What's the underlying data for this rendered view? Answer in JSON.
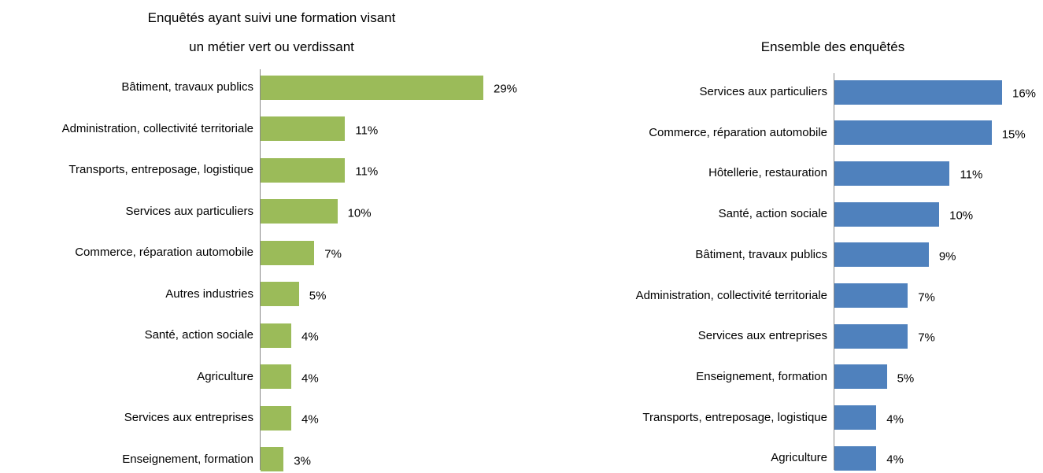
{
  "chart_data": [
    {
      "type": "bar",
      "title": "Enquêtés ayant suivi une formation visant un métier vert ou verdissant",
      "categories": [
        "Bâtiment, travaux publics",
        "Administration, collectivité territoriale",
        "Transports, entreposage, logistique",
        "Services aux particuliers",
        "Commerce, réparation automobile",
        "Autres industries",
        "Santé, action sociale",
        "Agriculture",
        "Services aux entreprises",
        "Enseignement, formation"
      ],
      "values": [
        29,
        11,
        11,
        10,
        7,
        5,
        4,
        4,
        4,
        3
      ],
      "value_labels": [
        "29%",
        "11%",
        "11%",
        "10%",
        "7%",
        "5%",
        "4%",
        "4%",
        "4%",
        "3%"
      ],
      "color": "#9bbb59"
    },
    {
      "type": "bar",
      "title": "Ensemble des enquêtés",
      "categories": [
        "Services aux particuliers",
        "Commerce, réparation automobile",
        "Hôtellerie, restauration",
        "Santé, action sociale",
        "Bâtiment, travaux publics",
        "Administration, collectivité territoriale",
        "Services aux entreprises",
        "Enseignement, formation",
        "Transports, entreposage, logistique",
        "Agriculture"
      ],
      "values": [
        16,
        15,
        11,
        10,
        9,
        7,
        7,
        5,
        4,
        4
      ],
      "value_labels": [
        "16%",
        "15%",
        "11%",
        "10%",
        "9%",
        "7%",
        "7%",
        "5%",
        "4%",
        "4%"
      ],
      "color": "#4f81bd"
    }
  ]
}
